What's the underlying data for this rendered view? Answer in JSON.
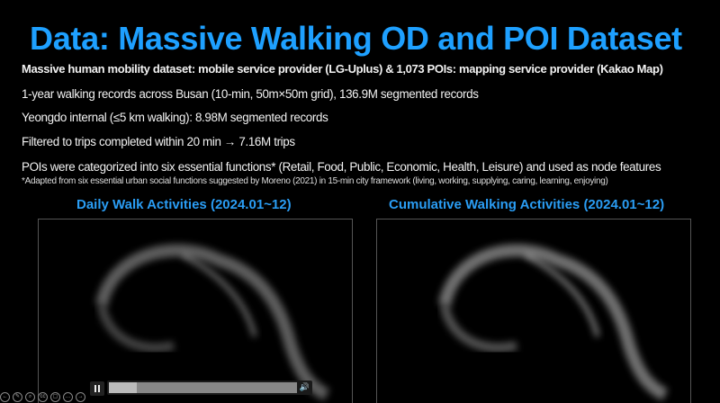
{
  "slide": {
    "title": "Data: Massive Walking OD and POI Dataset",
    "bullets": [
      "Massive human mobility dataset: mobile service provider (LG-Uplus) & 1,073 POIs: mapping service provider (Kakao Map)",
      "1-year walking records across Busan (10-min, 50m×50m grid), 136.9M segmented records",
      "Yeongdo internal (≤5 km walking): 8.98M segmented records",
      "Filtered to trips completed within 20 min → 7.16M trips",
      "POIs were categorized into six essential functions* (Retail, Food, Public, Economic, Health, Leisure) and used as node features"
    ],
    "footnote": "*Adapted from six essential urban social functions suggested by Moreno (2021) in 15-min city framework (living, working, supplying, caring, learning, enjoying)",
    "left_caption": "Daily Walk Activities (2024.01~12)",
    "right_caption": "Cumulative Walking Activities (2024.01~12)"
  },
  "video_player": {
    "state": "playing",
    "progress_percent": 15,
    "pause_icon": "pause-icon",
    "volume_icon": "volume-icon"
  },
  "presenter_toolbar": {
    "icons": [
      "back-icon",
      "pen-icon",
      "zoom-icon",
      "subtitles-icon",
      "camera-icon",
      "more-icon",
      "forward-icon"
    ]
  },
  "colors": {
    "title": "#1ea0ff",
    "caption": "#2a9df4",
    "background": "#000000"
  }
}
